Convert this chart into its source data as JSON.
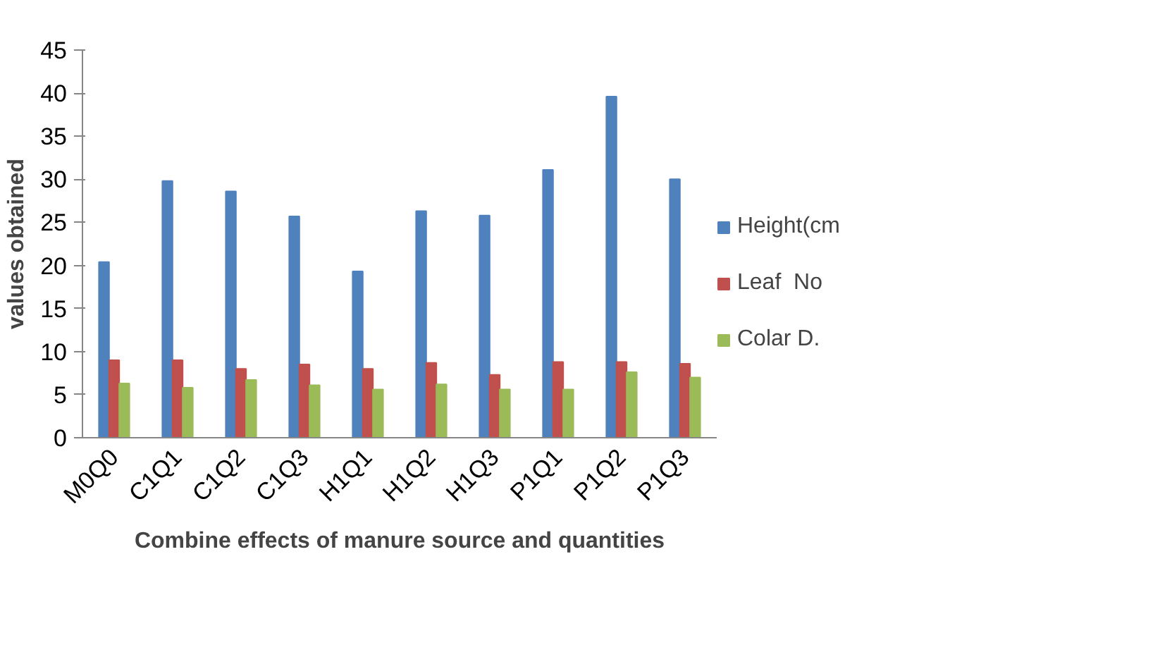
{
  "chart_data": {
    "type": "bar",
    "xlabel": "Combine effects of manure source and quantities",
    "ylabel": "values obtained",
    "categories": [
      "M0Q0",
      "C1Q1",
      "C1Q2",
      "C1Q3",
      "H1Q1",
      "H1Q2",
      "H1Q3",
      "P1Q1",
      "P1Q2",
      "P1Q3"
    ],
    "series": [
      {
        "name": "Height(cm",
        "color": "#4f81bd",
        "values": [
          20.4,
          29.8,
          28.6,
          25.7,
          19.3,
          26.3,
          25.8,
          31.1,
          39.6,
          30.0
        ]
      },
      {
        "name": "Leaf  No",
        "color": "#c0504d",
        "values": [
          9.0,
          9.0,
          8.0,
          8.5,
          8.0,
          8.7,
          7.3,
          8.8,
          8.8,
          8.6
        ]
      },
      {
        "name": "Colar D.",
        "color": "#9bbb59",
        "values": [
          6.3,
          5.8,
          6.7,
          6.1,
          5.6,
          6.2,
          5.6,
          5.6,
          7.6,
          7.0
        ]
      }
    ],
    "ylim": [
      0,
      45
    ],
    "yticks": [
      0,
      5,
      10,
      15,
      20,
      25,
      30,
      35,
      40,
      45
    ],
    "grid": false,
    "legend": "right"
  }
}
